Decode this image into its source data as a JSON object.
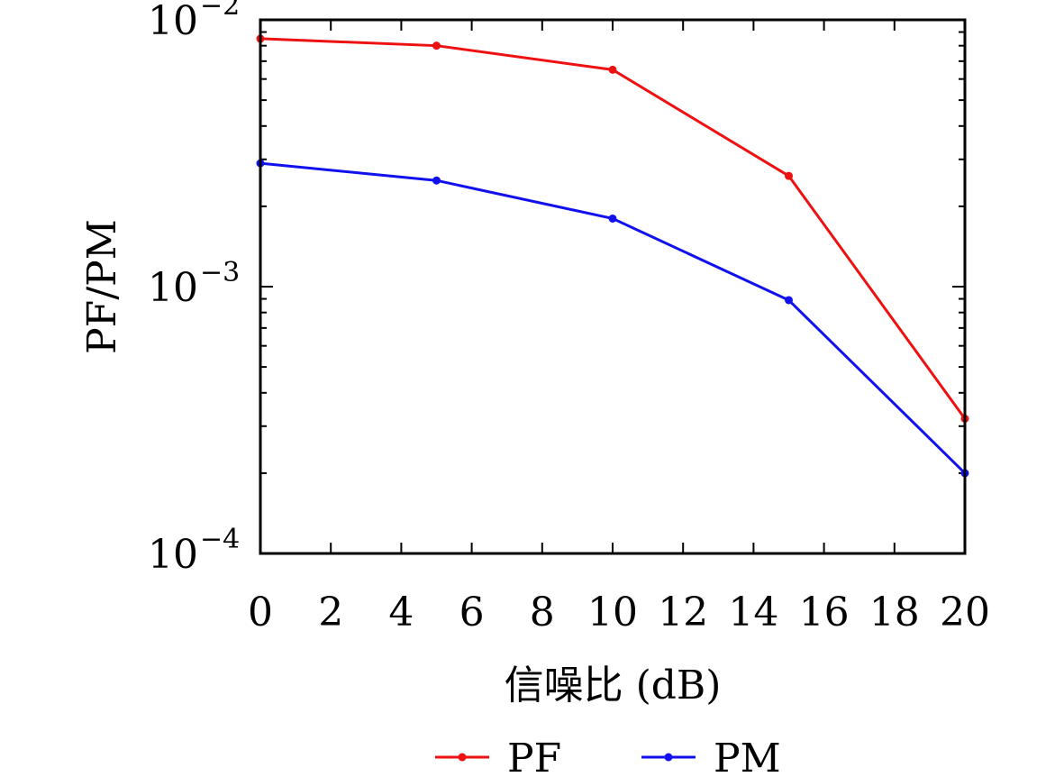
{
  "chart_data": {
    "type": "line",
    "title": "",
    "xlabel": "信噪比 (dB)",
    "ylabel": "PF/PM",
    "x": [
      0,
      5,
      10,
      15,
      20
    ],
    "xlim": [
      0,
      20
    ],
    "xticks": [
      "0",
      "2",
      "4",
      "6",
      "8",
      "10",
      "12",
      "14",
      "16",
      "18",
      "20"
    ],
    "yscale": "log",
    "ylim": [
      0.0001,
      0.01
    ],
    "yticks": [
      {
        "value": 0.01,
        "base": "10",
        "exp": "−2"
      },
      {
        "value": 0.001,
        "base": "10",
        "exp": "−3"
      },
      {
        "value": 0.0001,
        "base": "10",
        "exp": "−4"
      }
    ],
    "grid": false,
    "legend_position": "bottom",
    "series": [
      {
        "name": "PF",
        "color": "#ee1111",
        "marker": "dot",
        "values": [
          0.0085,
          0.008,
          0.0065,
          0.0026,
          0.00032
        ]
      },
      {
        "name": "PM",
        "color": "#1111ee",
        "marker": "dot",
        "values": [
          0.0029,
          0.0025,
          0.0018,
          0.00089,
          0.0002
        ]
      }
    ]
  }
}
